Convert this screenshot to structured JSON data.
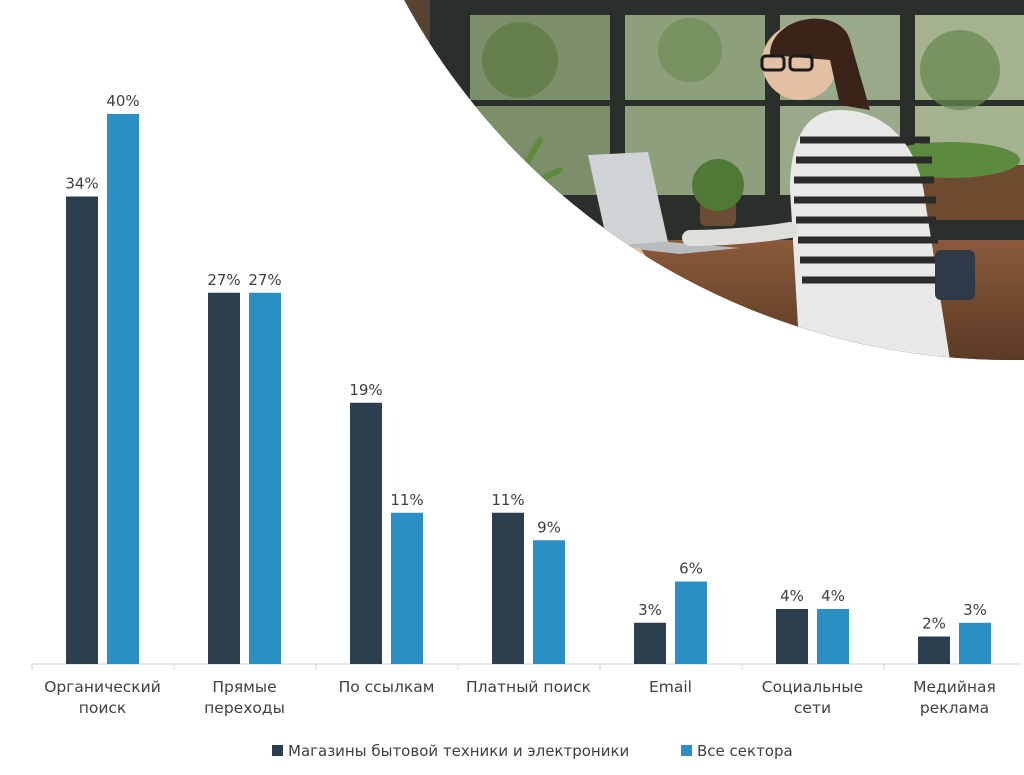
{
  "chart_data": {
    "type": "bar",
    "categories": [
      [
        "Органический",
        "поиск"
      ],
      [
        "Прямые",
        "переходы"
      ],
      [
        "По ссылкам"
      ],
      [
        "Платный поиск"
      ],
      [
        "Email"
      ],
      [
        "Социальные",
        "сети"
      ],
      [
        "Медийная",
        "реклама"
      ]
    ],
    "series": [
      {
        "name": "Магазины бытовой техники и электроники",
        "color": "#2d3e4f",
        "values": [
          34,
          27,
          19,
          11,
          3,
          4,
          2
        ],
        "labels": [
          "34%",
          "27%",
          "19%",
          "11%",
          "3%",
          "4%",
          "2%"
        ]
      },
      {
        "name": "Все сектора",
        "color": "#2b8fc4",
        "values": [
          40,
          27,
          11,
          9,
          6,
          4,
          3
        ],
        "labels": [
          "40%",
          "27%",
          "11%",
          "9%",
          "6%",
          "4%",
          "3%"
        ]
      }
    ],
    "ylim": [
      0,
      40
    ],
    "grid": false,
    "legend_position": "bottom-center"
  },
  "photo": {
    "description_icon": "woman-working-on-laptop-photo"
  }
}
